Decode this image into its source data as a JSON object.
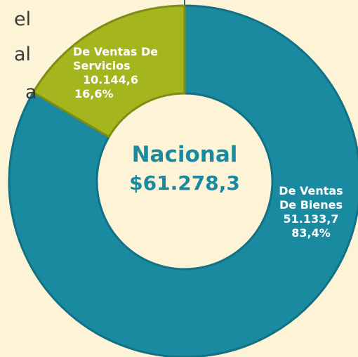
{
  "chart_data": {
    "type": "donut",
    "center_title": "Nacional",
    "center_value": "$61.278,3",
    "categories": [
      "De Ventas De Bienes",
      "De Ventas De Servicios"
    ],
    "values": [
      51133.7,
      10144.6
    ],
    "value_labels": [
      "51.133,7",
      "10.144,6"
    ],
    "percents": [
      83.4,
      16.6
    ],
    "percent_labels": [
      "83,4%",
      "16,6%"
    ],
    "colors": [
      "#1a8aa0",
      "#a5b51d"
    ],
    "side_text": [
      "el",
      "al",
      "a"
    ]
  }
}
